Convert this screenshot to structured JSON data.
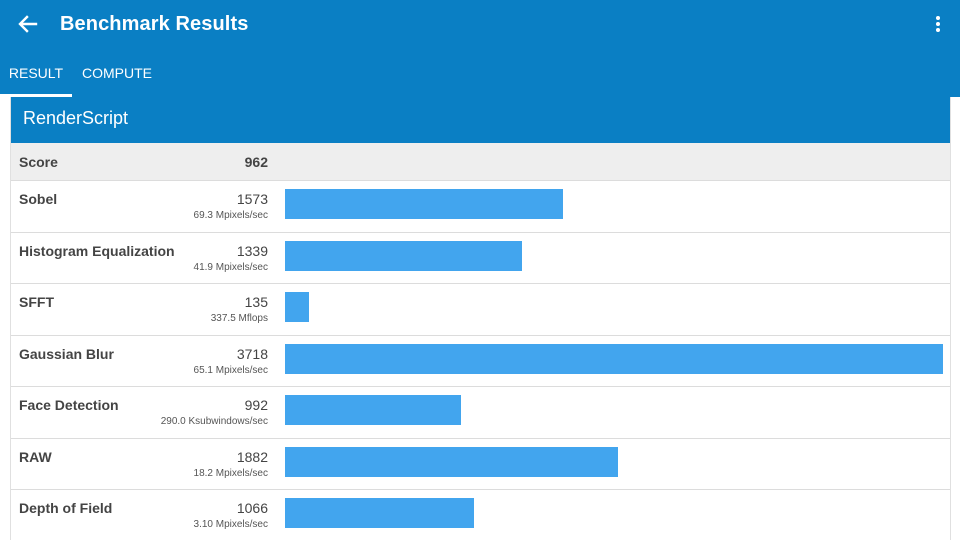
{
  "app": {
    "title": "Benchmark Results",
    "accent": "#0a7fc4",
    "bar_color": "#42a5ee"
  },
  "icons": {
    "back": "arrow-back-icon",
    "overflow": "more-vert-icon"
  },
  "tabs": [
    {
      "label": "RESULT",
      "active": true
    },
    {
      "label": "COMPUTE",
      "active": false
    }
  ],
  "section": {
    "title": "RenderScript"
  },
  "score": {
    "label": "Score",
    "value": "962"
  },
  "rows": [
    {
      "label": "Sobel",
      "value": "1573",
      "unit": "69.3 Mpixels/sec",
      "bar": 1573
    },
    {
      "label": "Histogram Equalization",
      "value": "1339",
      "unit": "41.9 Mpixels/sec",
      "bar": 1339
    },
    {
      "label": "SFFT",
      "value": "135",
      "unit": "337.5 Mflops",
      "bar": 135
    },
    {
      "label": "Gaussian Blur",
      "value": "3718",
      "unit": "65.1 Mpixels/sec",
      "bar": 3718
    },
    {
      "label": "Face Detection",
      "value": "992",
      "unit": "290.0 Ksubwindows/sec",
      "bar": 992
    },
    {
      "label": "RAW",
      "value": "1882",
      "unit": "18.2 Mpixels/sec",
      "bar": 1882
    },
    {
      "label": "Depth of Field",
      "value": "1066",
      "unit": "3.10 Mpixels/sec",
      "bar": 1066
    }
  ]
}
